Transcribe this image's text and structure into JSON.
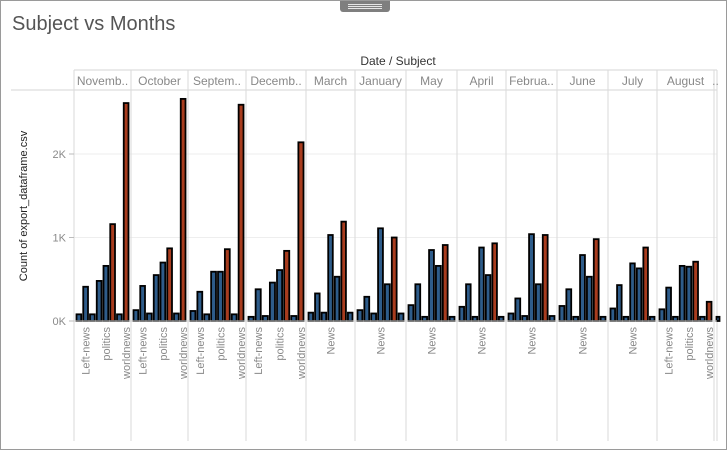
{
  "window": {
    "title": "Subject vs Months"
  },
  "chart_data": {
    "type": "bar",
    "title": "Subject vs Months",
    "column_header": "Date / Subject",
    "ylabel": "Count of export_dataframe.csv",
    "yticks": [
      "0K",
      "1K",
      "2K"
    ],
    "ytick_values": [
      0,
      1000,
      2000
    ],
    "ylim": [
      0,
      2800
    ],
    "grid": true,
    "colors": [
      "#2e5c8a",
      "#a83c1e"
    ],
    "months": [
      {
        "name": "Novemb..",
        "subjects": [
          {
            "label": "",
            "value": 80,
            "color": "#2e5c8a"
          },
          {
            "label": "Left-news",
            "value": 410,
            "color": "#2e5c8a"
          },
          {
            "label": "",
            "value": 80,
            "color": "#2e5c8a"
          },
          {
            "label": "",
            "value": 480,
            "color": "#2e5c8a"
          },
          {
            "label": "politics",
            "value": 660,
            "color": "#2e5c8a"
          },
          {
            "label": "",
            "value": 1160,
            "color": "#a83c1e"
          },
          {
            "label": "",
            "value": 80,
            "color": "#2e5c8a"
          },
          {
            "label": "worldnews",
            "value": 2610,
            "color": "#a83c1e"
          }
        ]
      },
      {
        "name": "October",
        "subjects": [
          {
            "label": "",
            "value": 130,
            "color": "#2e5c8a"
          },
          {
            "label": "Left-news",
            "value": 420,
            "color": "#2e5c8a"
          },
          {
            "label": "",
            "value": 90,
            "color": "#2e5c8a"
          },
          {
            "label": "",
            "value": 550,
            "color": "#2e5c8a"
          },
          {
            "label": "politics",
            "value": 700,
            "color": "#2e5c8a"
          },
          {
            "label": "",
            "value": 870,
            "color": "#a83c1e"
          },
          {
            "label": "",
            "value": 90,
            "color": "#2e5c8a"
          },
          {
            "label": "worldnews",
            "value": 2660,
            "color": "#a83c1e"
          }
        ]
      },
      {
        "name": "Septem..",
        "subjects": [
          {
            "label": "",
            "value": 120,
            "color": "#2e5c8a"
          },
          {
            "label": "Left-news",
            "value": 350,
            "color": "#2e5c8a"
          },
          {
            "label": "",
            "value": 80,
            "color": "#2e5c8a"
          },
          {
            "label": "",
            "value": 590,
            "color": "#2e5c8a"
          },
          {
            "label": "politics",
            "value": 590,
            "color": "#2e5c8a"
          },
          {
            "label": "",
            "value": 860,
            "color": "#a83c1e"
          },
          {
            "label": "",
            "value": 80,
            "color": "#2e5c8a"
          },
          {
            "label": "worldnews",
            "value": 2590,
            "color": "#a83c1e"
          }
        ]
      },
      {
        "name": "Decemb..",
        "subjects": [
          {
            "label": "",
            "value": 50,
            "color": "#2e5c8a"
          },
          {
            "label": "Left-news",
            "value": 380,
            "color": "#2e5c8a"
          },
          {
            "label": "",
            "value": 60,
            "color": "#2e5c8a"
          },
          {
            "label": "",
            "value": 460,
            "color": "#2e5c8a"
          },
          {
            "label": "politics",
            "value": 610,
            "color": "#2e5c8a"
          },
          {
            "label": "",
            "value": 840,
            "color": "#a83c1e"
          },
          {
            "label": "",
            "value": 60,
            "color": "#2e5c8a"
          },
          {
            "label": "worldnews",
            "value": 2140,
            "color": "#a83c1e"
          }
        ]
      },
      {
        "name": "March",
        "subjects": [
          {
            "label": "",
            "value": 100,
            "color": "#2e5c8a"
          },
          {
            "label": "",
            "value": 330,
            "color": "#2e5c8a"
          },
          {
            "label": "",
            "value": 100,
            "color": "#2e5c8a"
          },
          {
            "label": "News",
            "value": 1030,
            "color": "#2e5c8a"
          },
          {
            "label": "",
            "value": 530,
            "color": "#2e5c8a"
          },
          {
            "label": "",
            "value": 1190,
            "color": "#a83c1e"
          },
          {
            "label": "",
            "value": 100,
            "color": "#2e5c8a"
          }
        ]
      },
      {
        "name": "January",
        "subjects": [
          {
            "label": "",
            "value": 130,
            "color": "#2e5c8a"
          },
          {
            "label": "",
            "value": 290,
            "color": "#2e5c8a"
          },
          {
            "label": "",
            "value": 90,
            "color": "#2e5c8a"
          },
          {
            "label": "News",
            "value": 1110,
            "color": "#2e5c8a"
          },
          {
            "label": "",
            "value": 440,
            "color": "#2e5c8a"
          },
          {
            "label": "",
            "value": 1000,
            "color": "#a83c1e"
          },
          {
            "label": "",
            "value": 90,
            "color": "#2e5c8a"
          }
        ]
      },
      {
        "name": "May",
        "subjects": [
          {
            "label": "",
            "value": 190,
            "color": "#2e5c8a"
          },
          {
            "label": "",
            "value": 440,
            "color": "#2e5c8a"
          },
          {
            "label": "",
            "value": 50,
            "color": "#2e5c8a"
          },
          {
            "label": "News",
            "value": 850,
            "color": "#2e5c8a"
          },
          {
            "label": "",
            "value": 660,
            "color": "#2e5c8a"
          },
          {
            "label": "",
            "value": 910,
            "color": "#a83c1e"
          },
          {
            "label": "",
            "value": 50,
            "color": "#2e5c8a"
          }
        ]
      },
      {
        "name": "April",
        "subjects": [
          {
            "label": "",
            "value": 170,
            "color": "#2e5c8a"
          },
          {
            "label": "",
            "value": 440,
            "color": "#2e5c8a"
          },
          {
            "label": "",
            "value": 50,
            "color": "#2e5c8a"
          },
          {
            "label": "News",
            "value": 880,
            "color": "#2e5c8a"
          },
          {
            "label": "",
            "value": 550,
            "color": "#2e5c8a"
          },
          {
            "label": "",
            "value": 930,
            "color": "#a83c1e"
          },
          {
            "label": "",
            "value": 50,
            "color": "#2e5c8a"
          }
        ]
      },
      {
        "name": "Februa..",
        "subjects": [
          {
            "label": "",
            "value": 90,
            "color": "#2e5c8a"
          },
          {
            "label": "",
            "value": 270,
            "color": "#2e5c8a"
          },
          {
            "label": "",
            "value": 60,
            "color": "#2e5c8a"
          },
          {
            "label": "News",
            "value": 1040,
            "color": "#2e5c8a"
          },
          {
            "label": "",
            "value": 440,
            "color": "#2e5c8a"
          },
          {
            "label": "",
            "value": 1030,
            "color": "#a83c1e"
          },
          {
            "label": "",
            "value": 60,
            "color": "#2e5c8a"
          }
        ]
      },
      {
        "name": "June",
        "subjects": [
          {
            "label": "",
            "value": 180,
            "color": "#2e5c8a"
          },
          {
            "label": "",
            "value": 380,
            "color": "#2e5c8a"
          },
          {
            "label": "",
            "value": 50,
            "color": "#2e5c8a"
          },
          {
            "label": "News",
            "value": 790,
            "color": "#2e5c8a"
          },
          {
            "label": "",
            "value": 530,
            "color": "#2e5c8a"
          },
          {
            "label": "",
            "value": 980,
            "color": "#a83c1e"
          },
          {
            "label": "",
            "value": 50,
            "color": "#2e5c8a"
          }
        ]
      },
      {
        "name": "July",
        "subjects": [
          {
            "label": "",
            "value": 150,
            "color": "#2e5c8a"
          },
          {
            "label": "",
            "value": 430,
            "color": "#2e5c8a"
          },
          {
            "label": "",
            "value": 50,
            "color": "#2e5c8a"
          },
          {
            "label": "News",
            "value": 690,
            "color": "#2e5c8a"
          },
          {
            "label": "",
            "value": 630,
            "color": "#2e5c8a"
          },
          {
            "label": "",
            "value": 880,
            "color": "#a83c1e"
          },
          {
            "label": "",
            "value": 50,
            "color": "#2e5c8a"
          }
        ]
      },
      {
        "name": "August",
        "subjects": [
          {
            "label": "",
            "value": 140,
            "color": "#2e5c8a"
          },
          {
            "label": "Left-news",
            "value": 400,
            "color": "#2e5c8a"
          },
          {
            "label": "",
            "value": 50,
            "color": "#2e5c8a"
          },
          {
            "label": "",
            "value": 660,
            "color": "#2e5c8a"
          },
          {
            "label": "politics",
            "value": 650,
            "color": "#2e5c8a"
          },
          {
            "label": "",
            "value": 710,
            "color": "#a83c1e"
          },
          {
            "label": "",
            "value": 50,
            "color": "#2e5c8a"
          },
          {
            "label": "worldnews",
            "value": 230,
            "color": "#a83c1e"
          }
        ]
      },
      {
        "name": "..",
        "subjects": [
          {
            "label": "",
            "value": 50,
            "color": "#2e5c8a"
          }
        ]
      }
    ]
  }
}
